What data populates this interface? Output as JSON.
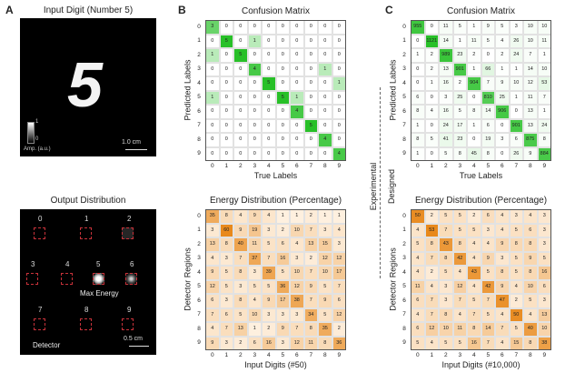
{
  "panel_a": {
    "letter": "A",
    "input_title": "Input Digit (Number 5)",
    "input_digit_glyph": "5",
    "colorbar_max": "1",
    "colorbar_min": "0",
    "colorbar_label": "Amp. (a.u.)",
    "scale_input": "1.0 cm",
    "output_title": "Output Distribution",
    "region_labels": [
      "0",
      "1",
      "2",
      "3",
      "4",
      "5",
      "6",
      "7",
      "8",
      "9"
    ],
    "max_energy_label": "Max Energy",
    "detector_label": "Detector",
    "scale_output": "0.5 cm"
  },
  "panel_b": {
    "letter": "B"
  },
  "panel_c": {
    "letter": "C"
  },
  "divider": {
    "left_label": "Experimental",
    "right_label": "Designed"
  },
  "colors": {
    "confusion_green": "#27c027",
    "energy_orange": "#e8891c",
    "detector_red": "#c8323a"
  },
  "chart_data": [
    {
      "type": "heatmap",
      "title": "Confusion Matrix",
      "xlabel": "True Labels",
      "ylabel": "Predicted Labels",
      "x": [
        "0",
        "1",
        "2",
        "3",
        "4",
        "5",
        "6",
        "7",
        "8",
        "9"
      ],
      "y": [
        "0",
        "1",
        "2",
        "3",
        "4",
        "5",
        "6",
        "7",
        "8",
        "9"
      ],
      "values": [
        [
          3,
          0,
          0,
          0,
          0,
          0,
          0,
          0,
          0,
          0
        ],
        [
          0,
          5,
          0,
          1,
          0,
          0,
          0,
          0,
          0,
          0
        ],
        [
          1,
          0,
          5,
          0,
          0,
          0,
          0,
          0,
          0,
          0
        ],
        [
          0,
          0,
          0,
          4,
          0,
          0,
          0,
          0,
          1,
          0
        ],
        [
          0,
          0,
          0,
          0,
          5,
          0,
          0,
          0,
          0,
          1
        ],
        [
          1,
          0,
          0,
          0,
          0,
          5,
          1,
          0,
          0,
          0
        ],
        [
          0,
          0,
          0,
          0,
          0,
          0,
          4,
          0,
          0,
          0
        ],
        [
          0,
          0,
          0,
          0,
          0,
          0,
          0,
          5,
          0,
          0
        ],
        [
          0,
          0,
          0,
          0,
          0,
          0,
          0,
          0,
          4,
          0
        ],
        [
          0,
          0,
          0,
          0,
          0,
          0,
          0,
          0,
          0,
          4
        ]
      ]
    },
    {
      "type": "heatmap",
      "title": "Energy Distribution (Percentage)",
      "xlabel": "Input Digits (#50)",
      "ylabel": "Detector Regions",
      "x": [
        "0",
        "1",
        "2",
        "3",
        "4",
        "5",
        "6",
        "7",
        "8",
        "9"
      ],
      "y": [
        "0",
        "1",
        "2",
        "3",
        "4",
        "5",
        "6",
        "7",
        "8",
        "9"
      ],
      "values": [
        [
          35,
          8,
          4,
          9,
          4,
          1,
          1,
          2,
          1,
          1
        ],
        [
          3,
          60,
          9,
          19,
          3,
          2,
          10,
          7,
          3,
          4
        ],
        [
          13,
          8,
          40,
          11,
          5,
          6,
          4,
          13,
          15,
          3
        ],
        [
          4,
          3,
          7,
          37,
          7,
          16,
          3,
          2,
          12,
          12
        ],
        [
          9,
          5,
          8,
          3,
          39,
          5,
          10,
          7,
          10,
          17
        ],
        [
          12,
          5,
          3,
          5,
          5,
          36,
          12,
          9,
          5,
          7
        ],
        [
          6,
          3,
          8,
          4,
          9,
          17,
          38,
          7,
          9,
          6
        ],
        [
          7,
          6,
          5,
          10,
          3,
          3,
          3,
          34,
          5,
          12
        ],
        [
          4,
          7,
          13,
          1,
          2,
          9,
          7,
          8,
          35,
          2
        ],
        [
          9,
          3,
          2,
          6,
          16,
          3,
          12,
          11,
          8,
          36
        ]
      ]
    },
    {
      "type": "heatmap",
      "title": "Confusion Matrix",
      "xlabel": "True Labels",
      "ylabel": "Predicted Labels",
      "x": [
        "0",
        "1",
        "2",
        "3",
        "4",
        "5",
        "6",
        "7",
        "8",
        "9"
      ],
      "y": [
        "0",
        "1",
        "2",
        "3",
        "4",
        "5",
        "6",
        "7",
        "8",
        "9"
      ],
      "values": [
        [
          955,
          0,
          11,
          5,
          1,
          9,
          5,
          3,
          10,
          10
        ],
        [
          0,
          1121,
          14,
          1,
          11,
          5,
          4,
          26,
          10,
          11
        ],
        [
          1,
          2,
          989,
          23,
          2,
          0,
          2,
          24,
          7,
          1
        ],
        [
          0,
          2,
          13,
          901,
          1,
          66,
          1,
          1,
          14,
          10
        ],
        [
          0,
          1,
          16,
          2,
          904,
          7,
          9,
          10,
          12,
          53
        ],
        [
          6,
          0,
          3,
          25,
          0,
          810,
          25,
          1,
          11,
          7
        ],
        [
          8,
          4,
          16,
          5,
          8,
          14,
          906,
          0,
          13,
          1
        ],
        [
          1,
          0,
          24,
          17,
          1,
          6,
          0,
          901,
          13,
          24
        ],
        [
          8,
          5,
          41,
          23,
          0,
          19,
          3,
          6,
          875,
          8
        ],
        [
          1,
          0,
          5,
          8,
          45,
          8,
          0,
          26,
          9,
          884
        ]
      ]
    },
    {
      "type": "heatmap",
      "title": "Energy Distribution (Percentage)",
      "xlabel": "Input Digits (#10,000)",
      "ylabel": "Detector Regions",
      "x": [
        "0",
        "1",
        "2",
        "3",
        "4",
        "5",
        "6",
        "7",
        "8",
        "9"
      ],
      "y": [
        "0",
        "1",
        "2",
        "3",
        "4",
        "5",
        "6",
        "7",
        "8",
        "9"
      ],
      "values": [
        [
          50,
          2,
          5,
          5,
          2,
          6,
          4,
          3,
          4,
          3
        ],
        [
          4,
          53,
          7,
          5,
          5,
          3,
          4,
          5,
          6,
          3
        ],
        [
          5,
          8,
          43,
          8,
          4,
          4,
          9,
          8,
          8,
          3
        ],
        [
          4,
          7,
          8,
          42,
          4,
          9,
          3,
          5,
          9,
          5
        ],
        [
          4,
          2,
          5,
          4,
          43,
          5,
          8,
          5,
          8,
          16
        ],
        [
          11,
          4,
          3,
          12,
          4,
          42,
          9,
          4,
          10,
          6
        ],
        [
          6,
          7,
          3,
          7,
          5,
          7,
          47,
          2,
          5,
          3
        ],
        [
          4,
          7,
          8,
          4,
          7,
          5,
          4,
          50,
          4,
          13
        ],
        [
          6,
          12,
          10,
          11,
          8,
          14,
          7,
          5,
          40,
          10
        ],
        [
          5,
          4,
          5,
          5,
          16,
          7,
          4,
          15,
          8,
          38
        ]
      ]
    }
  ]
}
